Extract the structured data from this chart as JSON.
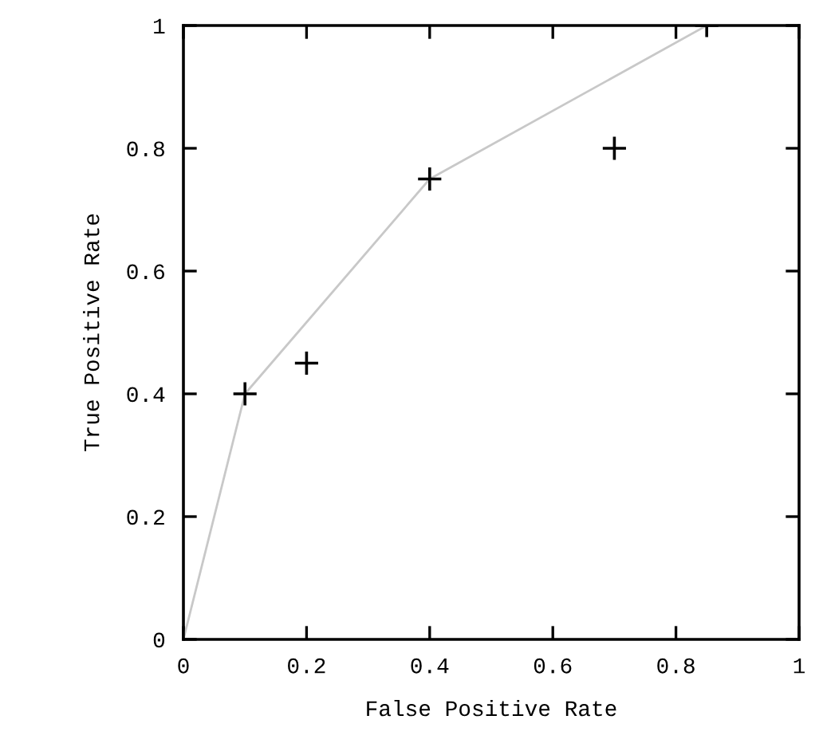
{
  "chart_data": {
    "type": "scatter",
    "xlabel": "False Positive Rate",
    "ylabel": "True Positive Rate",
    "series": [
      {
        "color": "#000000",
        "x": [
          0.1,
          0.2,
          0.4,
          0.7,
          0.85
        ],
        "values": [
          0.4,
          0.45,
          0.75,
          0.8,
          1
        ],
        "marker": "cross"
      },
      {
        "type": "line",
        "color": "#c8c8c8",
        "x": [
          0,
          0.1,
          0.4,
          0.85
        ],
        "values": [
          0,
          0.4,
          0.75,
          1
        ],
        "marker": "none",
        "line_style": "solid"
      }
    ],
    "xlim": [
      0,
      1
    ],
    "ylim": [
      0,
      1
    ],
    "xticks": [
      0,
      0.2,
      0.4,
      0.6,
      0.8,
      1
    ],
    "yticks": [
      0,
      0.2,
      0.4,
      0.6,
      0.8,
      1
    ],
    "grid": false,
    "legend": false
  }
}
